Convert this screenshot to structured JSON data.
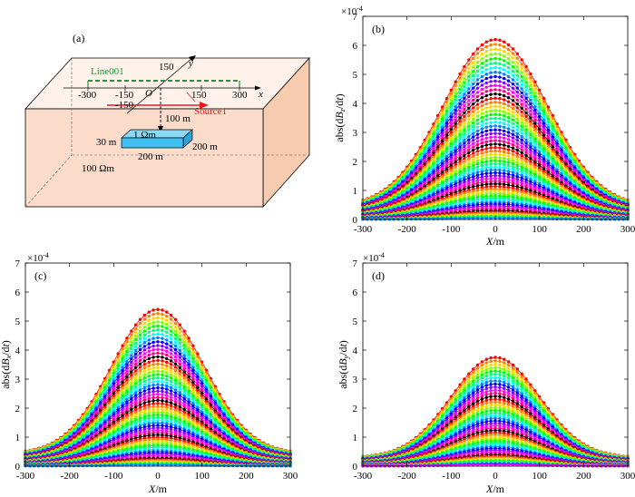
{
  "figure": {
    "colors": [
      "#ff0000",
      "#ff7f00",
      "#ffd700",
      "#7fff00",
      "#00ff00",
      "#00ff7f",
      "#00ffff",
      "#007fff",
      "#0000ff",
      "#7f00ff",
      "#ff00ff",
      "#ff007f",
      "#000000"
    ],
    "colors_note": "curve colours cycle through this list"
  },
  "diagram": {
    "panel_label": "(a)",
    "line_label": "Line001",
    "source_label": "Source1",
    "axis_x": "x",
    "axis_y": "y",
    "origin": "O",
    "tick_x_neg300": "-300",
    "tick_x_neg150": "-150",
    "tick_x_150": "150",
    "tick_x_300": "300",
    "tick_y_150": "150",
    "tick_y_neg150": "-150",
    "depth_label": "100 m",
    "block_resistivity": "1 Ωm",
    "block_thickness": "30 m",
    "block_length": "200 m",
    "block_width": "200 m",
    "host_resistivity": "100 Ωm",
    "colors": {
      "box_front": "#fbdcca",
      "box_top": "#fef2ea",
      "box_side": "#f7cbb0",
      "block": "#3fc0f0",
      "line": "#1a9a3a",
      "source": "#e8191c"
    }
  },
  "chart_data": [
    {
      "type": "line",
      "panel": "(b)",
      "title": "",
      "xlabel_var": "X",
      "xlabel_unit": "/m",
      "ylabel_pre": "abs(d",
      "ylabel_B": "B",
      "ylabel_sub": "z",
      "ylabel_mid": "/d",
      "ylabel_t": "t",
      "ylabel_post": ")",
      "scale_base": "×10",
      "scale_exp": "-4",
      "xlim": [
        -300,
        300
      ],
      "ylim": [
        0,
        7
      ],
      "xticks": [
        -300,
        -200,
        -100,
        0,
        100,
        200,
        300
      ],
      "yticks": [
        0,
        1,
        2,
        3,
        4,
        5,
        6,
        7
      ],
      "x_step": 10,
      "sigma": 118,
      "n_series": 60,
      "peak_max": 6.2,
      "peak_min": 0.05,
      "edge_ratio": 0.07
    },
    {
      "type": "line",
      "panel": "(c)",
      "title": "",
      "xlabel_var": "X",
      "xlabel_unit": "/m",
      "ylabel_pre": "abs(d",
      "ylabel_B": "B",
      "ylabel_sub": "x",
      "ylabel_mid": "/d",
      "ylabel_t": "t",
      "ylabel_post": ")",
      "scale_base": "×10",
      "scale_exp": "-4",
      "xlim": [
        -300,
        300
      ],
      "ylim": [
        0,
        7
      ],
      "xticks": [
        -300,
        -200,
        -100,
        0,
        100,
        200,
        300
      ],
      "yticks": [
        0,
        1,
        2,
        3,
        4,
        5,
        6,
        7
      ],
      "x_step": 10,
      "sigma": 105,
      "n_series": 60,
      "peak_max": 5.4,
      "peak_min": 0.05,
      "edge_ratio": 0.08
    },
    {
      "type": "line",
      "panel": "(d)",
      "title": "",
      "xlabel_var": "X",
      "xlabel_unit": "/m",
      "ylabel_pre": "abs(d",
      "ylabel_B": "B",
      "ylabel_sub": "y",
      "ylabel_mid": "/d",
      "ylabel_t": "t",
      "ylabel_post": ")",
      "scale_base": "×10",
      "scale_exp": "-4",
      "xlim": [
        -300,
        300
      ],
      "ylim": [
        0,
        7
      ],
      "xticks": [
        -300,
        -200,
        -100,
        0,
        100,
        200,
        300
      ],
      "yticks": [
        0,
        1,
        2,
        3,
        4,
        5,
        6,
        7
      ],
      "x_step": 10,
      "sigma": 100,
      "n_series": 50,
      "peak_max": 3.75,
      "peak_min": 0.05,
      "edge_ratio": 0.08
    }
  ]
}
